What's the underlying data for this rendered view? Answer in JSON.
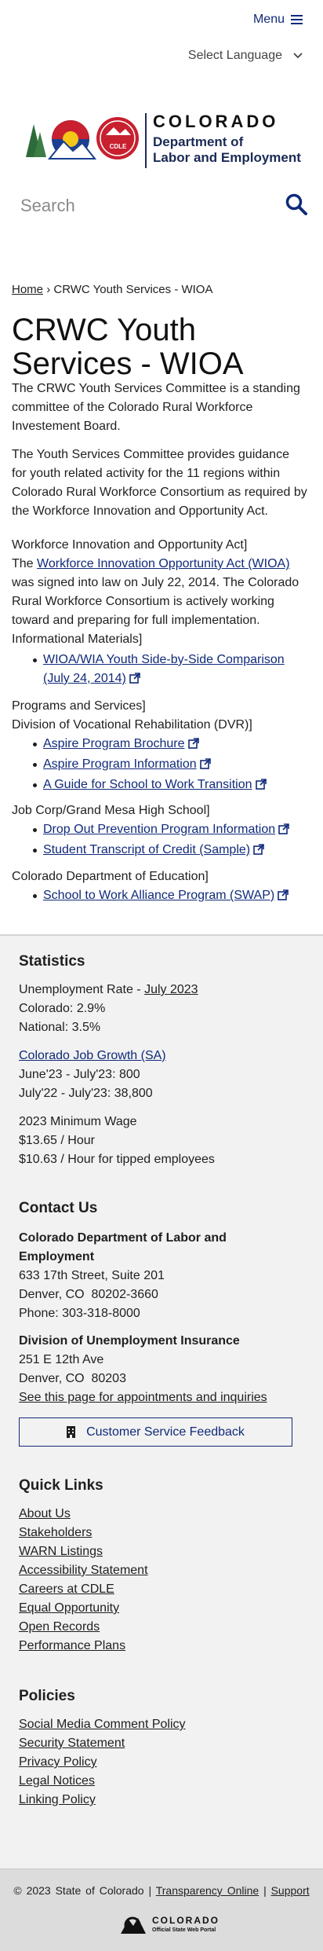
{
  "header": {
    "menu": "Menu",
    "language": "Select Language",
    "search_placeholder": "Search",
    "logo": {
      "badge": "CDLE",
      "state": "COLORADO",
      "department": [
        "Department of",
        "Labor and Employment"
      ]
    }
  },
  "breadcrumb": {
    "home": "Home",
    "separator": "›",
    "current": "CRWC Youth Services - WIOA"
  },
  "title": "CRWC Youth Services - WIOA",
  "intro": [
    "The CRWC Youth Services Committee is a standing committee of the Colorado Rural Workforce Investement Board.",
    "The Youth Services Committee provides guidance for youth related activity for the 11 regions within Colorado Rural Workforce Consortium as required by the Workforce Innovation and Opportunity Act."
  ],
  "wioa": {
    "heading": "Workforce Innovation and Opportunity Act]",
    "lead": "The",
    "link": "Workforce Innovation Opportunity Act (WIOA)",
    "text": "was signed into law on July 22, 2014. The Colorado Rural Workforce Consortium is actively working toward and preparing for full implementation.",
    "materials_heading": "Informational Materials]",
    "materials": [
      "WIOA/WIA Youth Side-by-Side Comparison (July 24, 2014)"
    ]
  },
  "groups": [
    {
      "headings": [
        "Programs and Services]",
        "Division of Vocational Rehabilitation (DVR)]"
      ],
      "links": [
        "Aspire Program Brochure",
        "Aspire Program Information",
        "A Guide for School to Work Transition"
      ]
    },
    {
      "headings": [
        "Job Corp/Grand Mesa High School]"
      ],
      "links": [
        "Drop Out Prevention Program Information",
        "Student Transcript of Credit (Sample)"
      ]
    },
    {
      "headings": [
        "Colorado Department of Education]"
      ],
      "links": [
        "School to Work Alliance Program (SWAP)"
      ]
    }
  ],
  "footer": {
    "statistics": {
      "heading": "Statistics",
      "unemployment": {
        "label": "Unemployment Rate -",
        "link": "July 2023",
        "lines": [
          "Colorado: 2.9%",
          "National: 3.5%"
        ]
      },
      "job_growth": {
        "link": "Colorado Job Growth (SA)",
        "lines": [
          "June'23 - July'23: 800",
          "July'22 - July'23: 38,800"
        ]
      },
      "minimum_wage": {
        "heading": "2023 Minimum Wage",
        "lines": [
          "$13.65 / Hour",
          "$10.63 / Hour for tipped employees"
        ]
      }
    },
    "contact": {
      "heading": "Contact Us",
      "offices": [
        {
          "name": "Colorado Department of Labor and Employment",
          "lines": [
            "633 17th Street, Suite 201",
            "Denver, CO  80202-3660",
            "Phone: 303-318-8000"
          ]
        },
        {
          "name": "Division of Unemployment Insurance",
          "lines": [
            "251 E 12th Ave",
            "Denver, CO  80203"
          ],
          "link": "See this page for appointments and inquiries"
        }
      ],
      "feedback": "Customer Service Feedback"
    },
    "quick_links": {
      "heading": "Quick Links",
      "links": [
        "About Us",
        "Stakeholders",
        "WARN Listings",
        "Accessibility Statement",
        "Careers at CDLE",
        "Equal Opportunity",
        "Open Records",
        "Performance Plans"
      ]
    },
    "policies": {
      "heading": "Policies",
      "links": [
        "Social Media Comment Policy",
        "Security Statement",
        "Privacy Policy",
        "Legal Notices",
        "Linking Policy"
      ]
    }
  },
  "bottom": {
    "copyright": "© 2023 State of Colorado",
    "separator": "|",
    "links": [
      "Transparency Online",
      "Support"
    ],
    "portal": {
      "name": "COLORADO",
      "tagline": "Official State Web Portal"
    }
  }
}
